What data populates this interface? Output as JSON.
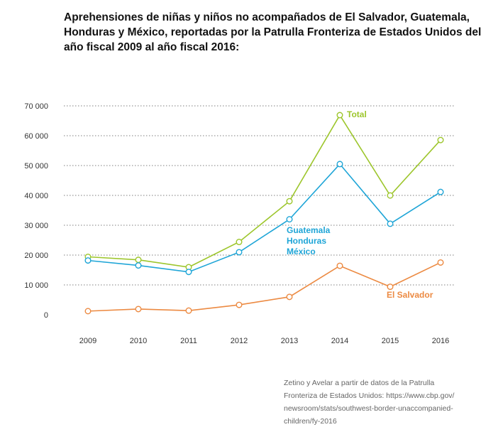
{
  "title_lines": [
    "Aprehensiones de niñas y niños no acompañados de El Salvador, Guatemala,",
    "Honduras y México, reportadas por la Patrulla Fronteriza de Estados Unidos del",
    "año fiscal 2009 al año fiscal 2016:"
  ],
  "source_lines": [
    "Zetino y Avelar a partir de datos de la Patrulla",
    "Fronteriza de Estados Unidos: https://www.cbp.gov/",
    "newsroom/stats/southwest-border-unaccompanied-",
    "children/fy-2016"
  ],
  "chart_data": {
    "type": "line",
    "title": "Aprehensiones de niñas y niños no acompañados de El Salvador, Guatemala, Honduras y México, reportadas por la Patrulla Fronteriza de Estados Unidos del año fiscal 2009 al año fiscal 2016:",
    "xlabel": "",
    "ylabel": "",
    "categories": [
      "2009",
      "2010",
      "2011",
      "2012",
      "2013",
      "2014",
      "2015",
      "2016"
    ],
    "ylim": [
      0,
      70000
    ],
    "yticks": [
      0,
      10000,
      20000,
      30000,
      40000,
      50000,
      60000,
      70000
    ],
    "ytick_labels": [
      "0",
      "10 000",
      "20 000",
      "30 000",
      "40 000",
      "50 000",
      "60 000",
      "70 000"
    ],
    "grid": "horizontal dotted",
    "legend": "inline labels next to lines",
    "series": [
      {
        "name": "Total",
        "label_lines": [
          "Total"
        ],
        "color": "#9dc62c",
        "values": [
          19418,
          18411,
          15949,
          24403,
          38045,
          66893,
          39970,
          58550
        ]
      },
      {
        "name": "Guatemala Honduras México",
        "label_lines": [
          "Guatemala",
          "Honduras",
          "México"
        ],
        "color": "#1ea5d7",
        "values": [
          18197,
          16525,
          14357,
          20964,
          31994,
          50496,
          30498,
          41158
        ]
      },
      {
        "name": "El Salvador",
        "label_lines": [
          "El Salvador"
        ],
        "color": "#ec8a42",
        "values": [
          1221,
          1910,
          1394,
          3314,
          5990,
          16404,
          9389,
          17512
        ]
      }
    ]
  }
}
